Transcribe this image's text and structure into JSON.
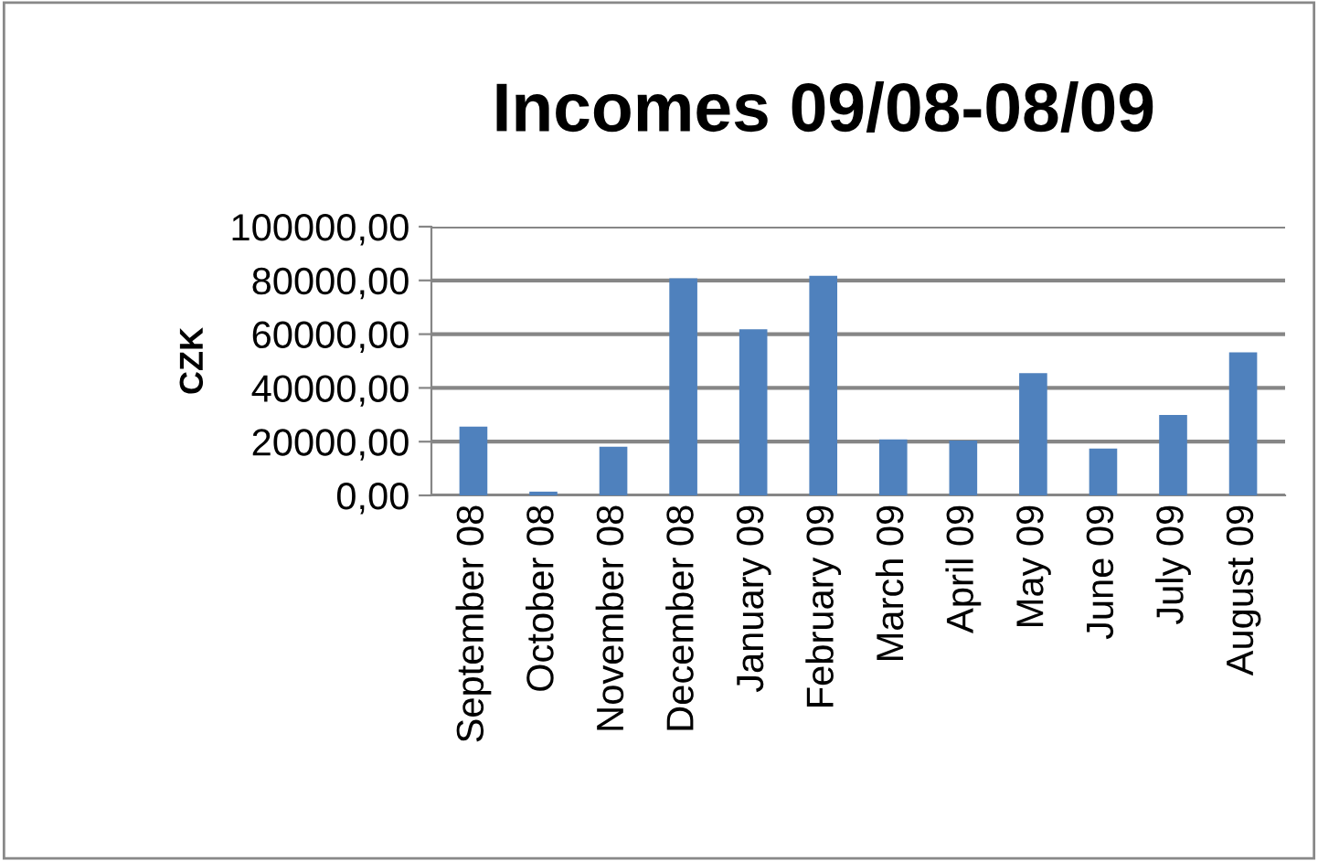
{
  "chart_data": {
    "type": "bar",
    "title": "Incomes 09/08-08/09",
    "ylabel": "CZK",
    "categories": [
      "September 08",
      "October 08",
      "November 08",
      "December 08",
      "January 09",
      "February 09",
      "March 09",
      "April 09",
      "May 09",
      "June 09",
      "July 09",
      "August 09"
    ],
    "values": [
      25600,
      1400,
      18100,
      80800,
      61800,
      81700,
      20800,
      20400,
      45500,
      17400,
      29900,
      53200
    ],
    "color": "#4f81bd",
    "ylim": [
      0,
      100000
    ],
    "yticks": [
      {
        "value": 0,
        "label": "0,00"
      },
      {
        "value": 20000,
        "label": "20000,00"
      },
      {
        "value": 40000,
        "label": "40000,00"
      },
      {
        "value": 60000,
        "label": "60000,00"
      },
      {
        "value": 80000,
        "label": "80000,00"
      },
      {
        "value": 100000,
        "label": "100000,00"
      }
    ],
    "grid": "y",
    "legend": false
  }
}
